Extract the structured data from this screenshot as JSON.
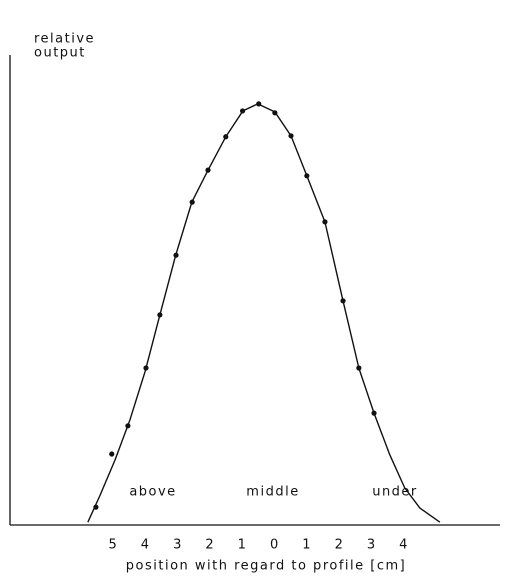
{
  "chart_data": {
    "type": "line",
    "ylabel_lines": [
      "relative",
      "output"
    ],
    "xlabel": "position with regard to profile [cm]",
    "annotations": [
      "above",
      "middle",
      "under"
    ],
    "xlim": [
      -8.2,
      6.97
    ],
    "ylim": [
      0,
      1
    ],
    "xticks": [
      {
        "value": -5,
        "label": "5"
      },
      {
        "value": -4,
        "label": "4"
      },
      {
        "value": -3,
        "label": "3"
      },
      {
        "value": -2,
        "label": "2"
      },
      {
        "value": -1,
        "label": "1"
      },
      0,
      1,
      2,
      3,
      4
    ],
    "points": {
      "x": [
        -5.54,
        -5.05,
        -4.55,
        -3.99,
        -3.56,
        -3.06,
        -2.56,
        -2.07,
        -1.52,
        -1.0,
        -0.5,
        0,
        0.5,
        0.99,
        1.55,
        2.11,
        2.6,
        3.07
      ],
      "values": [
        0.038,
        0.151,
        0.211,
        0.334,
        0.447,
        0.574,
        0.687,
        0.755,
        0.826,
        0.881,
        0.896,
        0.877,
        0.828,
        0.743,
        0.645,
        0.477,
        0.334,
        0.238
      ]
    },
    "curve": {
      "x": [
        -5.79,
        -5.42,
        -4.95,
        -4.49,
        -4.02,
        -3.56,
        -3.07,
        -2.57,
        -2.07,
        -1.52,
        -0.99,
        -0.53,
        0,
        0.5,
        0.99,
        1.55,
        2.11,
        2.6,
        3.07,
        3.56,
        4.02,
        4.49,
        5.11
      ],
      "values": [
        0.006,
        0.062,
        0.138,
        0.223,
        0.326,
        0.447,
        0.574,
        0.687,
        0.755,
        0.826,
        0.881,
        0.896,
        0.879,
        0.828,
        0.743,
        0.645,
        0.477,
        0.334,
        0.238,
        0.149,
        0.079,
        0.036,
        0.006
      ]
    },
    "color": "#111111"
  }
}
